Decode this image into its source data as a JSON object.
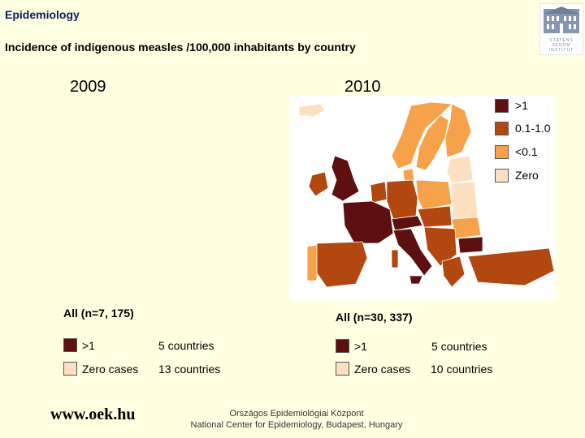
{
  "header": {
    "title": "Epidemiology",
    "subtitle": "Incidence of indigenous measles /100,000 inhabitants by country"
  },
  "logo": {
    "lines": [
      "STATENS",
      "SERUM",
      "INSTITUT"
    ]
  },
  "years": {
    "left": "2009",
    "right": "2010"
  },
  "legend": {
    "items": [
      {
        "label": ">1",
        "color": "#5e0f0f"
      },
      {
        "label": "0.1-1.0",
        "color": "#b2470f"
      },
      {
        "label": "<0.1",
        "color": "#f5a24a"
      },
      {
        "label": "Zero",
        "color": "#fde0c2"
      }
    ]
  },
  "summary": {
    "left": {
      "heading": "All (n=7, 175)",
      "rows": [
        {
          "label": ">1",
          "count": "5 countries",
          "color": "#5e0f0f"
        },
        {
          "label": "Zero cases",
          "count": "13 countries",
          "color": "#fde0c2"
        }
      ]
    },
    "right": {
      "heading": "All (n=30, 337)",
      "rows": [
        {
          "label": ">1",
          "count": "5 countries",
          "color": "#5e0f0f"
        },
        {
          "label": "Zero cases",
          "count": "10 countries",
          "color": "#fde0c2"
        }
      ]
    }
  },
  "footer": {
    "url": "www.oek.hu",
    "line1": "Országos Epidemiológiai Központ",
    "line2": "National Center for Epidemiology, Budapest, Hungary"
  }
}
